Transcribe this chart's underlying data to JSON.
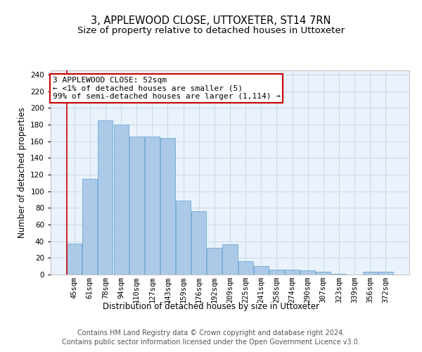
{
  "title": "3, APPLEWOOD CLOSE, UTTOXETER, ST14 7RN",
  "subtitle": "Size of property relative to detached houses in Uttoxeter",
  "xlabel": "Distribution of detached houses by size in Uttoxeter",
  "ylabel": "Number of detached properties",
  "categories": [
    "45sqm",
    "61sqm",
    "78sqm",
    "94sqm",
    "110sqm",
    "127sqm",
    "143sqm",
    "159sqm",
    "176sqm",
    "192sqm",
    "209sqm",
    "225sqm",
    "241sqm",
    "258sqm",
    "274sqm",
    "290sqm",
    "307sqm",
    "323sqm",
    "339sqm",
    "356sqm",
    "372sqm"
  ],
  "values": [
    37,
    115,
    185,
    180,
    166,
    166,
    164,
    89,
    76,
    32,
    36,
    16,
    10,
    6,
    6,
    5,
    3,
    1,
    0,
    3,
    3
  ],
  "bar_color": "#adc9e8",
  "bar_edge_color": "#6aaad4",
  "grid_color": "#c8d8ea",
  "background_color": "#eaf2fb",
  "ann_text_line1": "3 APPLEWOOD CLOSE: 52sqm",
  "ann_text_line2": "← <1% of detached houses are smaller (5)",
  "ann_text_line3": "99% of semi-detached houses are larger (1,114) →",
  "ann_box_color": "#ffffff",
  "ann_box_edge_color": "#cc0000",
  "footer_line1": "Contains HM Land Registry data © Crown copyright and database right 2024.",
  "footer_line2": "Contains public sector information licensed under the Open Government Licence v3.0.",
  "ylim": [
    0,
    245
  ],
  "yticks": [
    0,
    20,
    40,
    60,
    80,
    100,
    120,
    140,
    160,
    180,
    200,
    220,
    240
  ],
  "title_fontsize": 10.5,
  "subtitle_fontsize": 9.5,
  "axis_label_fontsize": 8.5,
  "tick_fontsize": 7.5,
  "annotation_fontsize": 8,
  "footer_fontsize": 7
}
